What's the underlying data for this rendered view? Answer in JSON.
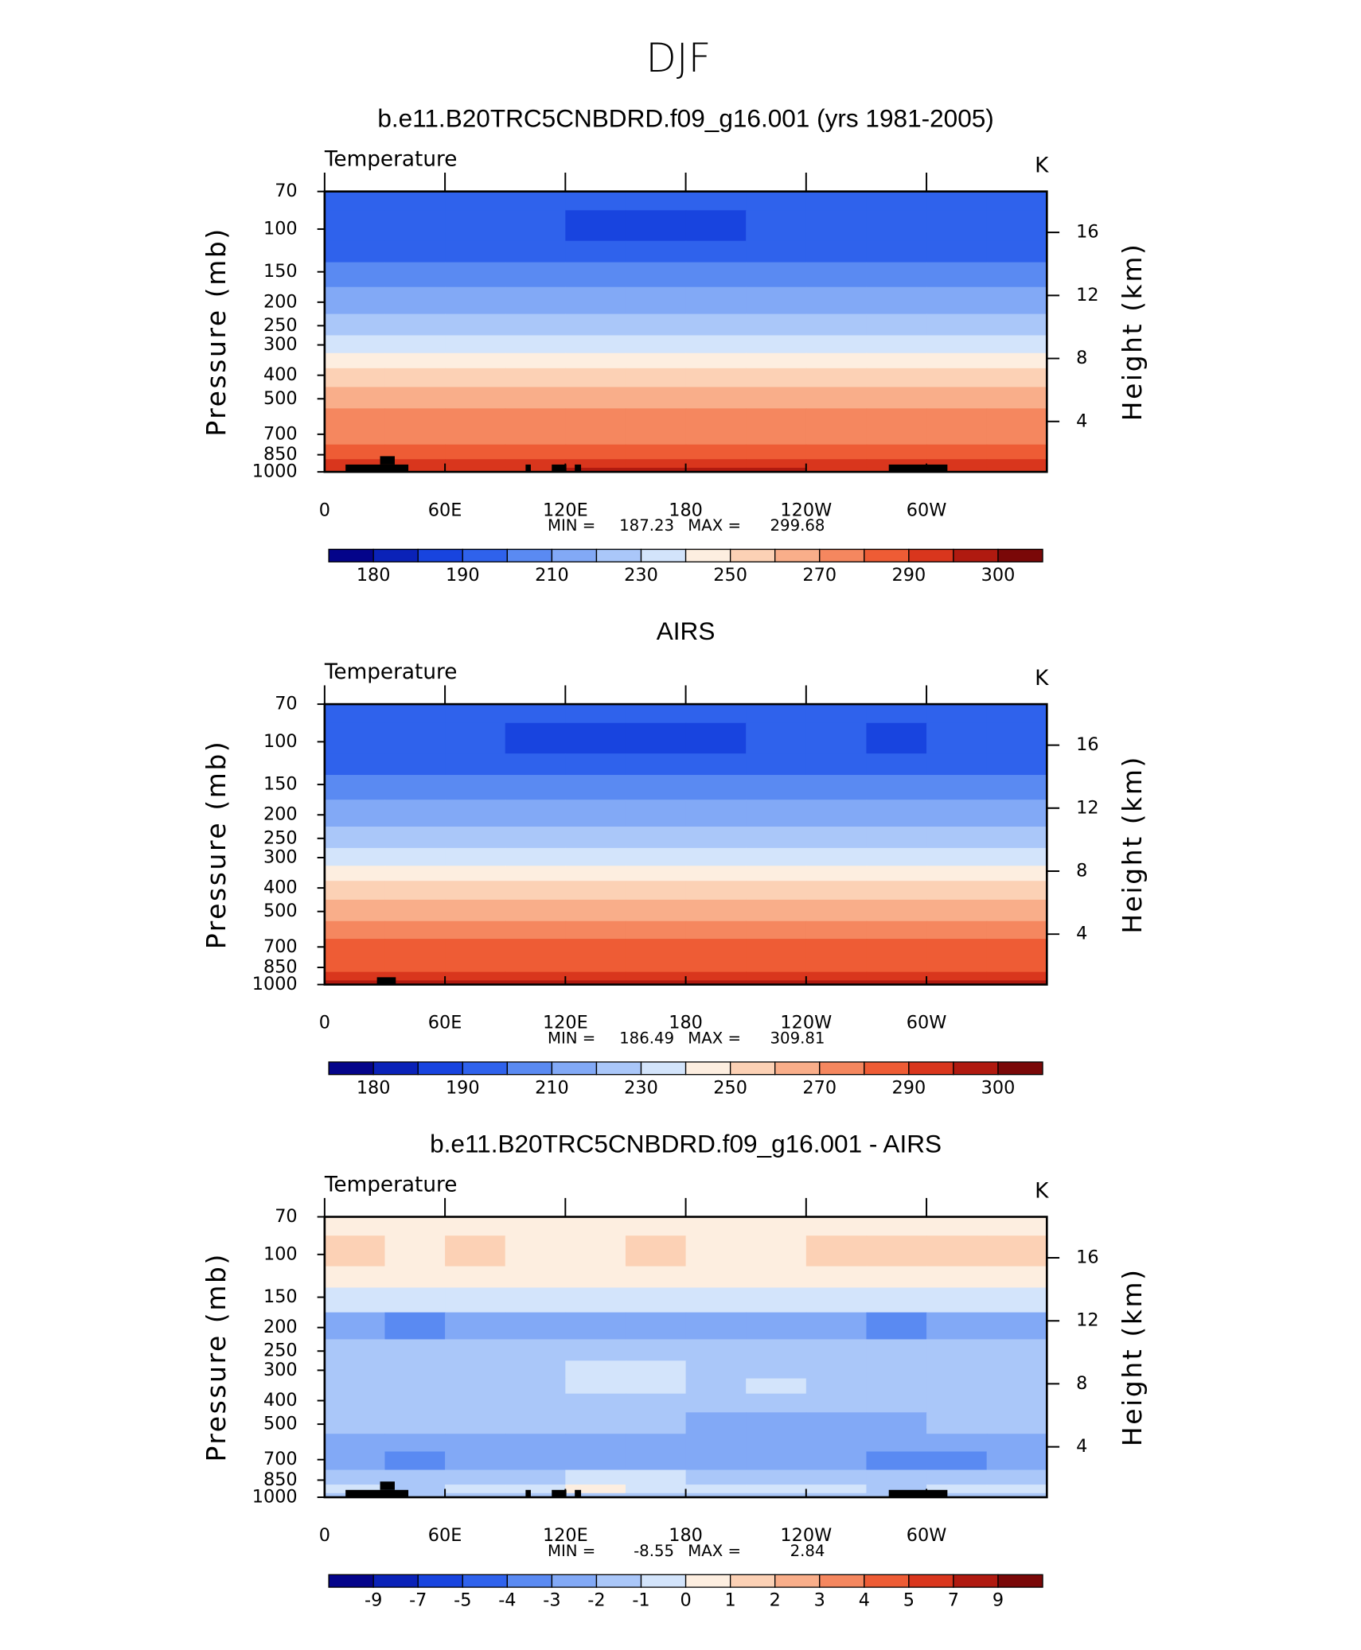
{
  "title": "DJF",
  "chart_data": [
    {
      "type": "contour",
      "title": "b.e11.B20TRC5CNBDRD.f09_g16.001 (yrs 1981-2005)",
      "subtitle": "Temperature",
      "units": "K",
      "ylabel": "Pressure (mb)",
      "y2label": "Height (km)",
      "ylog": true,
      "xlim": [
        0,
        360
      ],
      "xticks": [
        0,
        {
          "value": 60,
          "label": "60E"
        },
        {
          "value": 120,
          "label": "120E"
        },
        180,
        {
          "value": 240,
          "label": "120W"
        },
        {
          "value": 300,
          "label": "60W"
        }
      ],
      "ylim": [
        1000,
        70
      ],
      "yticks": [
        70,
        100,
        150,
        200,
        250,
        300,
        400,
        500,
        700,
        850,
        1000
      ],
      "y2lim": [
        0.8,
        18.6
      ],
      "y2ticks": [
        4,
        8,
        12,
        16
      ],
      "min_label": "MIN =",
      "min": 187.23,
      "max_label": "MAX =",
      "max": 299.68,
      "levels": [
        180,
        185,
        190,
        200,
        210,
        220,
        230,
        240,
        250,
        260,
        270,
        280,
        290,
        295,
        300
      ],
      "label_stride": 2,
      "colors": [
        "#04048a",
        "#0a22b8",
        "#1844df",
        "#2f62ec",
        "#5a8af2",
        "#82a9f6",
        "#aac7f9",
        "#d3e4fb",
        "#fdeee0",
        "#fcd1b5",
        "#f9ae8a",
        "#f5875f",
        "#ee5c35",
        "#d9361d",
        "#b01a10",
        "#7a0808"
      ],
      "lon": [
        15,
        45,
        75,
        105,
        135,
        165,
        195,
        225,
        255,
        285,
        315,
        345
      ],
      "p": [
        70,
        100,
        125,
        150,
        200,
        250,
        300,
        350,
        400,
        500,
        600,
        700,
        850,
        925,
        1000
      ],
      "z": [
        [
          196,
          196,
          196,
          196,
          196,
          196,
          196,
          196,
          196,
          196,
          196,
          196
        ],
        [
          193,
          193,
          193,
          193,
          189,
          188,
          189,
          193,
          193,
          193,
          193,
          193
        ],
        [
          198,
          198,
          198,
          198,
          197,
          197,
          197,
          198,
          198,
          198,
          198,
          198
        ],
        [
          205,
          205,
          205,
          205,
          205,
          205,
          205,
          205,
          205,
          205,
          205,
          205
        ],
        [
          215,
          215,
          215,
          215,
          215,
          215,
          215,
          215,
          215,
          215,
          215,
          215
        ],
        [
          225,
          225,
          225,
          225,
          225,
          225,
          225,
          225,
          225,
          225,
          225,
          225
        ],
        [
          235,
          235,
          235,
          235,
          236,
          236,
          236,
          235,
          235,
          235,
          235,
          235
        ],
        [
          245,
          245,
          245,
          245,
          246,
          246,
          246,
          245,
          245,
          245,
          245,
          245
        ],
        [
          255,
          255,
          254,
          255,
          256,
          256,
          256,
          255,
          254,
          254,
          255,
          255
        ],
        [
          264,
          264,
          263,
          264,
          265,
          265,
          265,
          264,
          263,
          263,
          264,
          264
        ],
        [
          272,
          272,
          271,
          272,
          273,
          273,
          273,
          272,
          271,
          271,
          272,
          272
        ],
        [
          278,
          278,
          278,
          278,
          279,
          279,
          279,
          278,
          278,
          278,
          278,
          278
        ],
        [
          285,
          285,
          285,
          285,
          286,
          286,
          286,
          285,
          284,
          285,
          285,
          285
        ],
        [
          291,
          291,
          290,
          291,
          292,
          292,
          292,
          291,
          290,
          291,
          291,
          291
        ],
        [
          294,
          294,
          292,
          294,
          296,
          296,
          296,
          296,
          294,
          294,
          294,
          294
        ]
      ]
    },
    {
      "type": "contour",
      "title": "AIRS",
      "subtitle": "Temperature",
      "units": "K",
      "ylabel": "Pressure (mb)",
      "y2label": "Height (km)",
      "ylog": true,
      "xlim": [
        0,
        360
      ],
      "xticks": [
        0,
        {
          "value": 60,
          "label": "60E"
        },
        {
          "value": 120,
          "label": "120E"
        },
        180,
        {
          "value": 240,
          "label": "120W"
        },
        {
          "value": 300,
          "label": "60W"
        }
      ],
      "ylim": [
        1000,
        70
      ],
      "yticks": [
        70,
        100,
        150,
        200,
        250,
        300,
        400,
        500,
        700,
        850,
        1000
      ],
      "y2lim": [
        0.8,
        18.6
      ],
      "y2ticks": [
        4,
        8,
        12,
        16
      ],
      "min_label": "MIN =",
      "min": 186.49,
      "max_label": "MAX =",
      "max": 309.81,
      "levels": [
        180,
        185,
        190,
        200,
        210,
        220,
        230,
        240,
        250,
        260,
        270,
        280,
        290,
        295,
        300
      ],
      "label_stride": 2,
      "colors": [
        "#04048a",
        "#0a22b8",
        "#1844df",
        "#2f62ec",
        "#5a8af2",
        "#82a9f6",
        "#aac7f9",
        "#d3e4fb",
        "#fdeee0",
        "#fcd1b5",
        "#f9ae8a",
        "#f5875f",
        "#ee5c35",
        "#d9361d",
        "#b01a10",
        "#7a0808"
      ],
      "lon": [
        15,
        45,
        75,
        105,
        135,
        165,
        195,
        225,
        255,
        285,
        315,
        345
      ],
      "p": [
        70,
        100,
        125,
        150,
        200,
        250,
        300,
        350,
        400,
        500,
        600,
        700,
        850,
        925,
        1000
      ],
      "z": [
        [
          196,
          196,
          196,
          196,
          196,
          196,
          196,
          196,
          196,
          196,
          196,
          196
        ],
        [
          191,
          192,
          191,
          189,
          188,
          187,
          189,
          193,
          191,
          189,
          193,
          193
        ],
        [
          199,
          199,
          199,
          198,
          198,
          198,
          198,
          199,
          199,
          199,
          199,
          199
        ],
        [
          206,
          206,
          206,
          206,
          206,
          206,
          206,
          206,
          206,
          206,
          206,
          206
        ],
        [
          217,
          217,
          217,
          217,
          217,
          217,
          217,
          217,
          217,
          217,
          217,
          217
        ],
        [
          227,
          227,
          227,
          227,
          227,
          227,
          227,
          227,
          227,
          227,
          227,
          227
        ],
        [
          237,
          237,
          237,
          237,
          238,
          238,
          238,
          237,
          237,
          237,
          237,
          237
        ],
        [
          247,
          247,
          247,
          247,
          248,
          248,
          248,
          247,
          247,
          247,
          247,
          247
        ],
        [
          256,
          256,
          255,
          256,
          257,
          257,
          257,
          256,
          255,
          255,
          256,
          256
        ],
        [
          266,
          266,
          265,
          266,
          267,
          267,
          267,
          266,
          265,
          265,
          266,
          266
        ],
        [
          274,
          274,
          273,
          274,
          275,
          275,
          275,
          274,
          273,
          273,
          274,
          274
        ],
        [
          281,
          281,
          281,
          281,
          282,
          282,
          282,
          281,
          281,
          281,
          281,
          281
        ],
        [
          288,
          288,
          287,
          288,
          289,
          289,
          289,
          288,
          287,
          288,
          288,
          288
        ],
        [
          293,
          294,
          292,
          293,
          294,
          294,
          294,
          293,
          292,
          293,
          293,
          293
        ],
        [
          297,
          297,
          297,
          297,
          299,
          299,
          299,
          297,
          296,
          298,
          297,
          297
        ]
      ]
    },
    {
      "type": "contour",
      "title": "b.e11.B20TRC5CNBDRD.f09_g16.001 - AIRS",
      "subtitle": "Temperature",
      "units": "K",
      "ylabel": "Pressure (mb)",
      "y2label": "Height (km)",
      "ylog": true,
      "xlim": [
        0,
        360
      ],
      "xticks": [
        0,
        {
          "value": 60,
          "label": "60E"
        },
        {
          "value": 120,
          "label": "120E"
        },
        180,
        {
          "value": 240,
          "label": "120W"
        },
        {
          "value": 300,
          "label": "60W"
        }
      ],
      "ylim": [
        1000,
        70
      ],
      "yticks": [
        70,
        100,
        150,
        200,
        250,
        300,
        400,
        500,
        700,
        850,
        1000
      ],
      "y2lim": [
        0.8,
        18.6
      ],
      "y2ticks": [
        4,
        8,
        12,
        16
      ],
      "min_label": "MIN =",
      "min": -8.55,
      "max_label": "MAX =",
      "max": 2.84,
      "levels": [
        -9,
        -7,
        -5,
        -4,
        -3,
        -2,
        -1,
        0,
        1,
        2,
        3,
        4,
        5,
        7,
        9
      ],
      "label_stride": 1,
      "colors": [
        "#04048a",
        "#0a22b8",
        "#1844df",
        "#2f62ec",
        "#5a8af2",
        "#82a9f6",
        "#aac7f9",
        "#d3e4fb",
        "#fdeee0",
        "#fcd1b5",
        "#f9ae8a",
        "#f5875f",
        "#ee5c35",
        "#d9361d",
        "#b01a10",
        "#7a0808"
      ],
      "lon": [
        15,
        45,
        75,
        105,
        135,
        165,
        195,
        225,
        255,
        285,
        315,
        345
      ],
      "p": [
        70,
        100,
        125,
        150,
        200,
        250,
        300,
        350,
        400,
        500,
        600,
        700,
        850,
        925,
        1000
      ],
      "z": [
        [
          0.5,
          0.5,
          0.5,
          0.5,
          0.5,
          0.5,
          0.5,
          0.5,
          0.5,
          0.5,
          0.5,
          0.5
        ],
        [
          1.2,
          0.8,
          1.2,
          0.6,
          0.5,
          1.2,
          0.6,
          0.5,
          1.3,
          1.5,
          1.6,
          1.5
        ],
        [
          0.3,
          0.3,
          0.3,
          0.3,
          0.3,
          0.3,
          0.3,
          0.3,
          0.3,
          0.3,
          0.3,
          0.3
        ],
        [
          -0.8,
          -0.8,
          -0.8,
          -0.8,
          -0.8,
          -0.8,
          -0.8,
          -0.8,
          -0.8,
          -0.8,
          -0.8,
          -0.8
        ],
        [
          -2.5,
          -3.2,
          -2.5,
          -2.5,
          -2.5,
          -2.5,
          -2.5,
          -2.5,
          -2.5,
          -3.2,
          -2.5,
          -2.5
        ],
        [
          -1.8,
          -1.8,
          -1.8,
          -1.8,
          -1.8,
          -1.8,
          -1.8,
          -1.8,
          -1.8,
          -1.8,
          -1.8,
          -1.8
        ],
        [
          -1.5,
          -1.5,
          -1.5,
          -1.5,
          -0.5,
          -0.5,
          -1.5,
          -1.5,
          -1.5,
          -1.5,
          -1.5,
          -1.5
        ],
        [
          -1.5,
          -1.5,
          -1.5,
          -1.5,
          -0.5,
          -0.5,
          -1.5,
          -0.6,
          -1.5,
          -1.5,
          -1.5,
          -1.5
        ],
        [
          -1.6,
          -1.6,
          -1.6,
          -1.6,
          -1.6,
          -1.6,
          -1.6,
          -1.6,
          -1.6,
          -1.6,
          -1.6,
          -1.6
        ],
        [
          -1.6,
          -1.6,
          -1.6,
          -1.6,
          -1.6,
          -1.6,
          -2.2,
          -2.2,
          -2.2,
          -2.2,
          -1.6,
          -1.6
        ],
        [
          -2.5,
          -2.5,
          -2.5,
          -2.5,
          -2.5,
          -2.5,
          -2.5,
          -2.5,
          -2.5,
          -2.5,
          -2.5,
          -2.5
        ],
        [
          -2.5,
          -3.5,
          -2.5,
          -2.5,
          -2.5,
          -2.5,
          -2.5,
          -2.5,
          -2.5,
          -3.5,
          -3.5,
          -2.5
        ],
        [
          -1.5,
          -1.5,
          -1.5,
          -1.5,
          -0.5,
          -0.5,
          -1.5,
          -1.5,
          -1.5,
          -1.5,
          -1.5,
          -1.5
        ],
        [
          -0.5,
          -1.5,
          -0.5,
          -0.5,
          0.5,
          -0.5,
          -0.5,
          -0.5,
          -0.5,
          -1.5,
          -0.5,
          -0.5
        ],
        [
          -1.5,
          -1.5,
          -1.5,
          -1.5,
          -1.5,
          -1.5,
          -1.5,
          -1.5,
          -1.5,
          -1.5,
          -1.5,
          -1.5
        ]
      ]
    }
  ]
}
